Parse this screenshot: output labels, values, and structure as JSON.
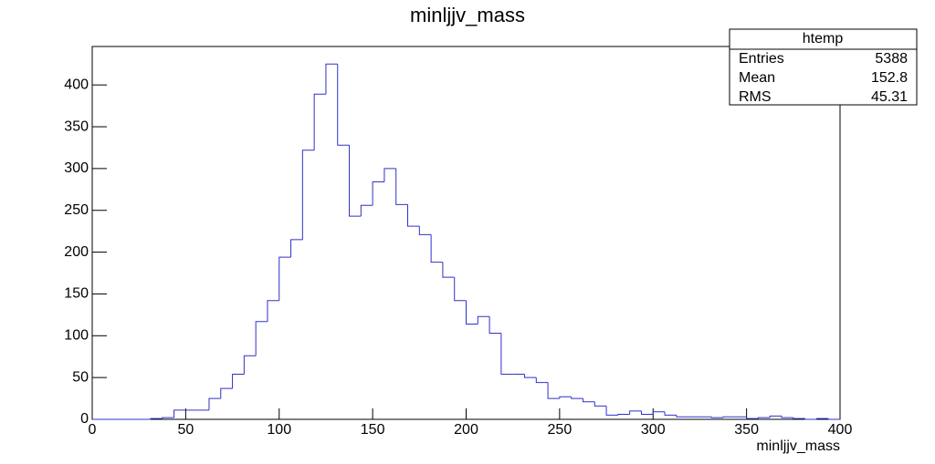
{
  "chart_data": {
    "type": "histogram",
    "title": "minljjv_mass",
    "x_label": "minljjv_mass",
    "color": "#3030c8",
    "bins": [
      0,
      6.25,
      12.5,
      18.75,
      25,
      31.25,
      37.5,
      43.75,
      50,
      56.25,
      62.5,
      68.75,
      75,
      81.25,
      87.5,
      93.75,
      100,
      106.25,
      112.5,
      118.75,
      125,
      131.25,
      137.5,
      143.75,
      150,
      156.25,
      162.5,
      168.75,
      175,
      181.25,
      187.5,
      193.75,
      200,
      206.25,
      212.5,
      218.75,
      225,
      231.25,
      237.5,
      243.75,
      250,
      256.25,
      262.5,
      268.75,
      275,
      281.25,
      287.5,
      293.75,
      300,
      306.25,
      312.5,
      318.75,
      325,
      331.25,
      337.5,
      343.75,
      350,
      356.25,
      362.5,
      368.75,
      375,
      381.25,
      387.5,
      393.75,
      400
    ],
    "values": [
      0,
      0,
      0,
      0,
      0,
      1,
      2,
      11,
      11,
      11,
      25,
      37,
      54,
      76,
      117,
      142,
      194,
      215,
      322,
      389,
      425,
      328,
      243,
      256,
      284,
      300,
      257,
      231,
      221,
      188,
      170,
      142,
      114,
      123,
      103,
      54,
      54,
      50,
      44,
      25,
      27,
      25,
      21,
      16,
      5,
      6,
      10,
      6,
      9,
      5,
      3,
      3,
      3,
      2,
      3,
      3,
      1,
      2,
      4,
      2,
      1,
      0,
      1,
      0
    ],
    "xlim": [
      0,
      400
    ],
    "ylim": [
      0,
      446
    ],
    "xticks": [
      0,
      50,
      100,
      150,
      200,
      250,
      300,
      350,
      400
    ],
    "yticks": [
      0,
      50,
      100,
      150,
      200,
      250,
      300,
      350,
      400
    ],
    "stats_box": {
      "title": "htemp",
      "rows": [
        [
          "Entries",
          5388
        ],
        [
          "Mean",
          152.8
        ],
        [
          "RMS",
          45.31
        ]
      ]
    }
  }
}
